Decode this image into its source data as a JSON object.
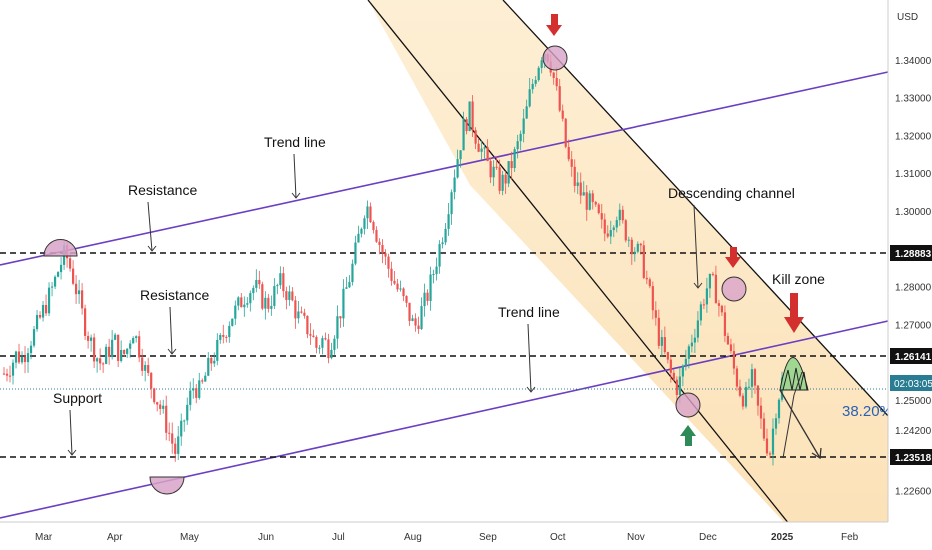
{
  "chart_data": {
    "type": "candlestick",
    "currency_label": "USD",
    "y_ticks": [
      "1.34000",
      "1.33000",
      "1.32000",
      "1.31000",
      "1.30000",
      "1.28000",
      "1.27000",
      "1.25000",
      "1.24200",
      "1.22600"
    ],
    "x_ticks": [
      "Mar",
      "Apr",
      "May",
      "Jun",
      "Jul",
      "Aug",
      "Sep",
      "Oct",
      "Nov",
      "Dec",
      "2025",
      "Feb"
    ],
    "levels": [
      {
        "label": "1.28883",
        "value": 1.28883
      },
      {
        "label": "1.26141",
        "value": 1.26141
      },
      {
        "label": "1.23518",
        "value": 1.23518
      }
    ],
    "countdown_label": "02:03:05",
    "fib_label": "38.20%",
    "annotations": {
      "trend_line_top": "Trend line",
      "resistance_top": "Resistance",
      "resistance_mid": "Resistance",
      "support": "Support",
      "trend_line_bottom": "Trend line",
      "descending_channel": "Descending channel",
      "kill_zone": "Kill zone"
    },
    "price_path": [
      1.257,
      1.259,
      1.262,
      1.261,
      1.265,
      1.268,
      1.272,
      1.276,
      1.28,
      1.285,
      1.289,
      1.284,
      1.278,
      1.271,
      1.266,
      1.262,
      1.259,
      1.263,
      1.266,
      1.261,
      1.263,
      1.269,
      1.264,
      1.258,
      1.254,
      1.25,
      1.246,
      1.241,
      1.236,
      1.242,
      1.249,
      1.254,
      1.252,
      1.257,
      1.261,
      1.264,
      1.268,
      1.272,
      1.274,
      1.277,
      1.279,
      1.28,
      1.277,
      1.275,
      1.278,
      1.281,
      1.279,
      1.276,
      1.272,
      1.27,
      1.268,
      1.264,
      1.266,
      1.264,
      1.269,
      1.274,
      1.28,
      1.286,
      1.294,
      1.302,
      1.299,
      1.293,
      1.288,
      1.284,
      1.28,
      1.277,
      1.273,
      1.269,
      1.273,
      1.277,
      1.283,
      1.29,
      1.297,
      1.306,
      1.314,
      1.322,
      1.326,
      1.32,
      1.316,
      1.312,
      1.31,
      1.307,
      1.309,
      1.313,
      1.318,
      1.324,
      1.332,
      1.338,
      1.343,
      1.341,
      1.333,
      1.324,
      1.314,
      1.308,
      1.305,
      1.303,
      1.301,
      1.298,
      1.294,
      1.297,
      1.3,
      1.296,
      1.293,
      1.29,
      1.288,
      1.281,
      1.273,
      1.266,
      1.261,
      1.256,
      1.253,
      1.259,
      1.265,
      1.27,
      1.276,
      1.281,
      1.28,
      1.273,
      1.266,
      1.259,
      1.253,
      1.25,
      1.256,
      1.248,
      1.241,
      1.236,
      1.248,
      1.255
    ]
  }
}
